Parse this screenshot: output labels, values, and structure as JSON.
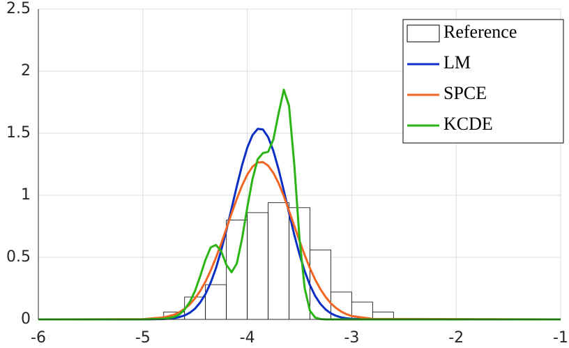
{
  "chart_data": {
    "type": "histogram",
    "xlim": [
      -6,
      -1
    ],
    "ylim": [
      0,
      2.5
    ],
    "xticks": [
      -6,
      -5,
      -4,
      -3,
      -2,
      -1
    ],
    "yticks": [
      0,
      0.5,
      1,
      1.5,
      2,
      2.5
    ],
    "grid": true,
    "legend": "upper right",
    "x": [
      -6,
      -5,
      -4.8,
      -4.7,
      -4.65,
      -4.6,
      -4.55,
      -4.5,
      -4.45,
      -4.4,
      -4.35,
      -4.3,
      -4.25,
      -4.2,
      -4.15,
      -4.1,
      -4.05,
      -4.0,
      -3.95,
      -3.9,
      -3.85,
      -3.8,
      -3.75,
      -3.7,
      -3.65,
      -3.6,
      -3.55,
      -3.5,
      -3.45,
      -3.4,
      -3.35,
      -3.3,
      -3.25,
      -3.2,
      -3.15,
      -3.1,
      -3.05,
      -3.0,
      -2.8,
      -1
    ],
    "series": [
      {
        "name": "Reference",
        "type": "histogram",
        "color": "#ffffff",
        "bins": [
          -4.8,
          -4.6,
          -4.4,
          -4.2,
          -4.0,
          -3.8,
          -3.6,
          -3.4,
          -3.2,
          -3.0,
          -2.8,
          -2.6
        ],
        "values": [
          0.06,
          0.18,
          0.28,
          0.8,
          0.86,
          0.94,
          0.9,
          0.56,
          0.22,
          0.14,
          0.06
        ]
      },
      {
        "name": "LM",
        "type": "line",
        "color": "#0b2fc4",
        "values": [
          0,
          0,
          0.003,
          0.01,
          0.019,
          0.032,
          0.054,
          0.087,
          0.137,
          0.204,
          0.296,
          0.412,
          0.555,
          0.717,
          0.894,
          1.073,
          1.241,
          1.383,
          1.484,
          1.535,
          1.53,
          1.468,
          1.357,
          1.209,
          1.037,
          0.857,
          0.682,
          0.524,
          0.388,
          0.276,
          0.189,
          0.125,
          0.08,
          0.049,
          0.029,
          0.016,
          0.009,
          0.005,
          0,
          0
        ]
      },
      {
        "name": "SPCE",
        "type": "line",
        "color": "#f26522",
        "values": [
          0,
          0.002,
          0.016,
          0.038,
          0.058,
          0.085,
          0.121,
          0.17,
          0.23,
          0.304,
          0.394,
          0.497,
          0.61,
          0.731,
          0.853,
          0.971,
          1.078,
          1.166,
          1.23,
          1.264,
          1.267,
          1.239,
          1.18,
          1.097,
          0.993,
          0.875,
          0.754,
          0.633,
          0.518,
          0.413,
          0.321,
          0.244,
          0.181,
          0.13,
          0.092,
          0.063,
          0.042,
          0.027,
          0.004,
          0
        ]
      },
      {
        "name": "KCDE",
        "type": "line",
        "color": "#2ab515",
        "values": [
          0,
          0,
          0.005,
          0.02,
          0.04,
          0.08,
          0.14,
          0.23,
          0.35,
          0.48,
          0.58,
          0.6,
          0.55,
          0.44,
          0.38,
          0.45,
          0.65,
          0.9,
          1.13,
          1.29,
          1.34,
          1.35,
          1.45,
          1.66,
          1.85,
          1.72,
          1.25,
          0.65,
          0.25,
          0.07,
          0.015,
          0.003,
          0,
          0,
          0,
          0,
          0,
          0,
          0,
          0
        ]
      }
    ]
  }
}
